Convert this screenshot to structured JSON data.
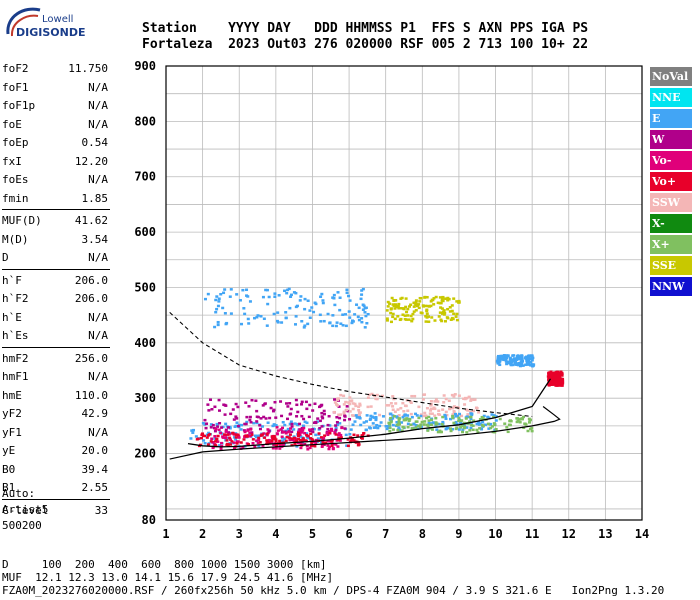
{
  "logo": {
    "line1": "Lowell",
    "line2": "DIGISONDE"
  },
  "header": {
    "row1": "Station    YYYY DAY   DDD HHMMSS P1  FFS S AXN PPS IGA PS",
    "row2": "Fortaleza  2023 Out03 276 020000 RSF 005 2 713 100 10+ 22"
  },
  "params_group1": [
    {
      "k": "foF2",
      "v": "11.750"
    },
    {
      "k": "foF1",
      "v": "N/A"
    },
    {
      "k": "foF1p",
      "v": "N/A"
    },
    {
      "k": "foE",
      "v": "N/A"
    },
    {
      "k": "foEp",
      "v": "0.54"
    },
    {
      "k": "fxI",
      "v": "12.20"
    },
    {
      "k": "foEs",
      "v": "N/A"
    },
    {
      "k": "fmin",
      "v": "1.85"
    }
  ],
  "params_group2": [
    {
      "k": "MUF(D)",
      "v": "41.62"
    },
    {
      "k": "M(D)",
      "v": "3.54"
    },
    {
      "k": "D",
      "v": "N/A"
    }
  ],
  "params_group3": [
    {
      "k": "h`F",
      "v": "206.0"
    },
    {
      "k": "h`F2",
      "v": "206.0"
    },
    {
      "k": "h`E",
      "v": "N/A"
    },
    {
      "k": "h`Es",
      "v": "N/A"
    }
  ],
  "params_group4": [
    {
      "k": "hmF2",
      "v": "256.0"
    },
    {
      "k": "hmF1",
      "v": "N/A"
    },
    {
      "k": "hmE",
      "v": "110.0"
    },
    {
      "k": "yF2",
      "v": "42.9"
    },
    {
      "k": "yF1",
      "v": "N/A"
    },
    {
      "k": "yE",
      "v": "20.0"
    },
    {
      "k": "B0",
      "v": "39.4"
    },
    {
      "k": "B1",
      "v": "2.55"
    }
  ],
  "params_group5": [
    {
      "k": "C-level",
      "v": "33"
    }
  ],
  "auto": {
    "line1": "Auto:",
    "line2": "Artist5",
    "line3": "500200"
  },
  "footer": {
    "line1": "D     100  200  400  600  800 1000 1500 3000 [km]",
    "line2": "MUF  12.1 12.3 13.0 14.1 15.6 17.9 24.5 41.6 [MHz]",
    "line3": "FZA0M_2023276020000.RSF / 260fx256h 50 kHz 5.0 km / DPS-4 FZA0M 904 / 3.9 S 321.6 E   Ion2Png 1.3.20"
  },
  "legend": [
    {
      "label": "NoVal",
      "color": "#808080"
    },
    {
      "label": "NNE",
      "color": "#00e5f0"
    },
    {
      "label": "E",
      "color": "#42a5f5"
    },
    {
      "label": "W",
      "color": "#b0008a"
    },
    {
      "label": "Vo-",
      "color": "#e0007a"
    },
    {
      "label": "Vo+",
      "color": "#e8002a"
    },
    {
      "label": "SSW",
      "color": "#f4b6b6"
    },
    {
      "label": "X-",
      "color": "#108a10"
    },
    {
      "label": "X+",
      "color": "#80c060"
    },
    {
      "label": "SSE",
      "color": "#c8c800"
    },
    {
      "label": "NNW",
      "color": "#1010d0"
    }
  ],
  "chart_data": {
    "type": "scatter",
    "title": "",
    "xlabel": "",
    "ylabel": "",
    "xlim": [
      1,
      14
    ],
    "ylim": [
      80,
      900
    ],
    "xticks": [
      1,
      2,
      3,
      4,
      5,
      6,
      7,
      8,
      9,
      10,
      11,
      12,
      13,
      14
    ],
    "yticks": [
      80,
      200,
      300,
      400,
      500,
      600,
      700,
      800,
      900
    ],
    "grid": true,
    "legend_position": "right",
    "profile_curve": {
      "x": [
        1.1,
        2,
        3,
        4,
        5,
        6,
        7,
        8,
        9,
        10,
        11,
        11.6,
        11.75,
        11.6,
        11.3
      ],
      "y": [
        190,
        203,
        208,
        212,
        216,
        220,
        224,
        228,
        233,
        240,
        250,
        258,
        262,
        270,
        285
      ]
    },
    "ordinary_trace": {
      "x": [
        1.6,
        2,
        2.5,
        3,
        4,
        5,
        6,
        7,
        8,
        9,
        10,
        11,
        11.5
      ],
      "y": [
        218,
        214,
        212,
        213,
        218,
        222,
        228,
        235,
        245,
        252,
        265,
        285,
        335
      ]
    },
    "dashed_curve": {
      "x": [
        1.1,
        2,
        3,
        4,
        5,
        6,
        7,
        8,
        9,
        10,
        11
      ],
      "y": [
        455,
        400,
        360,
        340,
        325,
        312,
        302,
        292,
        282,
        274,
        267
      ]
    },
    "echo_clusters": [
      {
        "series": "E",
        "x": [
          1.6,
          6
        ],
        "y": [
          215,
          260
        ]
      },
      {
        "series": "W",
        "x": [
          2,
          6
        ],
        "y": [
          240,
          300
        ]
      },
      {
        "series": "Vo-",
        "x": [
          2.2,
          5.8
        ],
        "y": [
          210,
          250
        ]
      },
      {
        "series": "Vo+",
        "x": [
          1.8,
          6.5
        ],
        "y": [
          215,
          240
        ]
      },
      {
        "series": "SSW",
        "x": [
          5.5,
          9.5
        ],
        "y": [
          270,
          310
        ]
      },
      {
        "series": "E",
        "x": [
          6,
          10
        ],
        "y": [
          245,
          275
        ]
      },
      {
        "series": "X+",
        "x": [
          7,
          11
        ],
        "y": [
          240,
          270
        ]
      },
      {
        "series": "SSE",
        "x": [
          7,
          9
        ],
        "y": [
          440,
          485
        ]
      },
      {
        "series": "E",
        "x": [
          2,
          6.5
        ],
        "y": [
          430,
          500
        ]
      },
      {
        "series": "E",
        "x": [
          10,
          11
        ],
        "y": [
          360,
          380
        ]
      },
      {
        "series": "Vo+",
        "x": [
          11.4,
          11.8
        ],
        "y": [
          325,
          350
        ]
      }
    ]
  }
}
